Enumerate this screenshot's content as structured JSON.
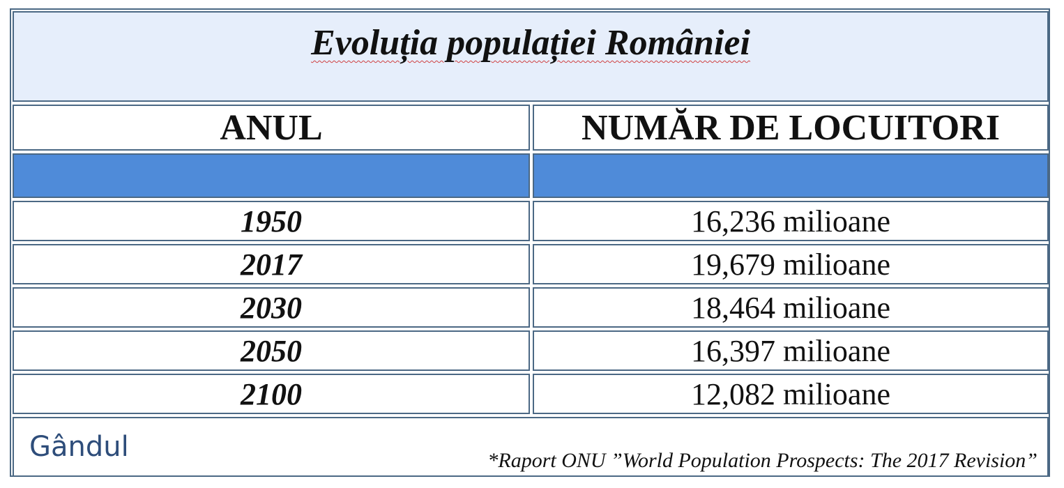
{
  "table": {
    "title": "Evoluția populației României",
    "headers": [
      "ANUL",
      "NUMĂR DE LOCUITORI"
    ],
    "rows": [
      [
        "1950",
        "16,236 milioane"
      ],
      [
        "2017",
        "19,679 milioane"
      ],
      [
        "2030",
        "18,464 milioane"
      ],
      [
        "2050",
        "16,397 milioane"
      ],
      [
        "2100",
        "12,082 milioane"
      ]
    ]
  },
  "footer": {
    "brand": "Gândul",
    "source": "*Raport ONU ”World Population Prospects: The 2017 Revision”"
  }
}
